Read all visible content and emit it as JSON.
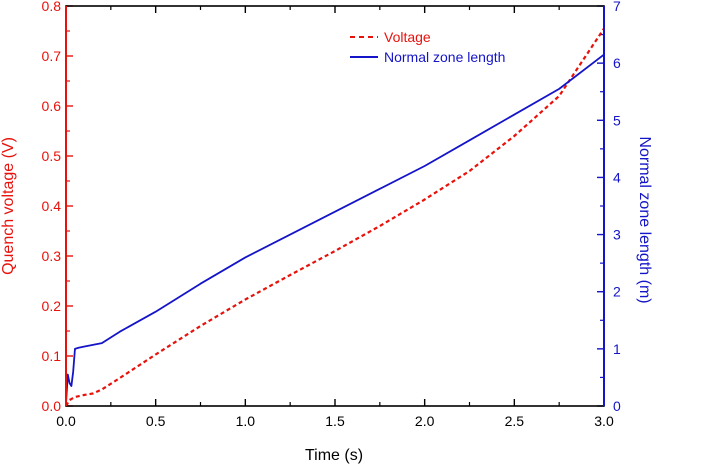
{
  "chart_data": {
    "type": "line",
    "title": "",
    "xlabel": "Time (s)",
    "ylabel_left": "Quench voltage (V)",
    "ylabel_right": "Normal zone length (m)",
    "xlim": [
      0,
      3.0
    ],
    "ylim_left": [
      0,
      0.8
    ],
    "ylim_right": [
      0,
      7
    ],
    "xticks": [
      "0.0",
      "0.5",
      "1.0",
      "1.5",
      "2.0",
      "2.5",
      "3.0"
    ],
    "yticks_left": [
      "0.0",
      "0.1",
      "0.2",
      "0.3",
      "0.4",
      "0.5",
      "0.6",
      "0.7",
      "0.8"
    ],
    "yticks_right": [
      "0",
      "1",
      "2",
      "3",
      "4",
      "5",
      "6",
      "7"
    ],
    "grid": false,
    "legend_position": "top-right",
    "colors": {
      "left_axis": "#e8120c",
      "right_axis": "#1414c8",
      "frame": "#000000"
    },
    "series": [
      {
        "name": "Voltage",
        "axis": "left",
        "style": "dashed",
        "color": "#e8120c",
        "x": [
          0.0,
          0.02,
          0.05,
          0.1,
          0.15,
          0.2,
          0.3,
          0.5,
          0.75,
          1.0,
          1.25,
          1.5,
          1.75,
          2.0,
          2.25,
          2.5,
          2.75,
          3.0
        ],
        "y": [
          0.0,
          0.012,
          0.018,
          0.022,
          0.025,
          0.033,
          0.056,
          0.103,
          0.16,
          0.213,
          0.262,
          0.31,
          0.36,
          0.413,
          0.47,
          0.54,
          0.62,
          0.755
        ]
      },
      {
        "name": "Normal zone length",
        "axis": "right",
        "style": "solid",
        "color": "#1414c8",
        "x": [
          0.0,
          0.01,
          0.02,
          0.03,
          0.04,
          0.05,
          0.07,
          0.1,
          0.2,
          0.3,
          0.5,
          0.75,
          1.0,
          1.25,
          1.5,
          1.75,
          2.0,
          2.25,
          2.5,
          2.75,
          3.0
        ],
        "y": [
          0.05,
          0.55,
          0.4,
          0.35,
          0.6,
          1.0,
          1.02,
          1.04,
          1.1,
          1.3,
          1.65,
          2.14,
          2.6,
          3.0,
          3.4,
          3.8,
          4.2,
          4.65,
          5.1,
          5.55,
          6.15
        ]
      }
    ]
  }
}
